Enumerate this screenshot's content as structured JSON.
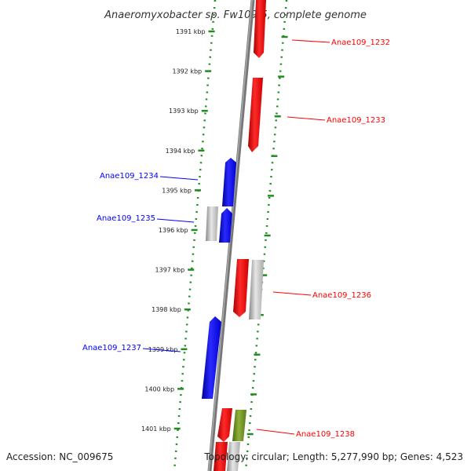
{
  "title": "Anaeromyxobacter sp. Fw109-5, complete genome",
  "footer": {
    "accession": "Accession: NC_009675",
    "summary": "Topology: circular; Length: 5,277,990 bp; Genes: 4,523"
  },
  "colors": {
    "forward": "#ff0000",
    "reverse": "#0000ff",
    "other": "#6b8e23",
    "rna": "#bbbbbb",
    "backbone": "#777777",
    "tick": "#228b22"
  },
  "chart_data": {
    "type": "genome-map",
    "ticks": [
      "1391 kbp",
      "1392 kbp",
      "1393 kbp",
      "1394 kbp",
      "1395 kbp",
      "1396 kbp",
      "1397 kbp",
      "1398 kbp",
      "1399 kbp",
      "1400 kbp",
      "1401 kbp"
    ],
    "gene_labels": [
      {
        "name": "Anae109_1232",
        "strand": "forward"
      },
      {
        "name": "Anae109_1233",
        "strand": "forward"
      },
      {
        "name": "Anae109_1234",
        "strand": "reverse"
      },
      {
        "name": "Anae109_1235",
        "strand": "reverse"
      },
      {
        "name": "Anae109_1236",
        "strand": "forward"
      },
      {
        "name": "Anae109_1237",
        "strand": "reverse"
      },
      {
        "name": "Anae109_1238",
        "strand": "forward"
      }
    ]
  }
}
